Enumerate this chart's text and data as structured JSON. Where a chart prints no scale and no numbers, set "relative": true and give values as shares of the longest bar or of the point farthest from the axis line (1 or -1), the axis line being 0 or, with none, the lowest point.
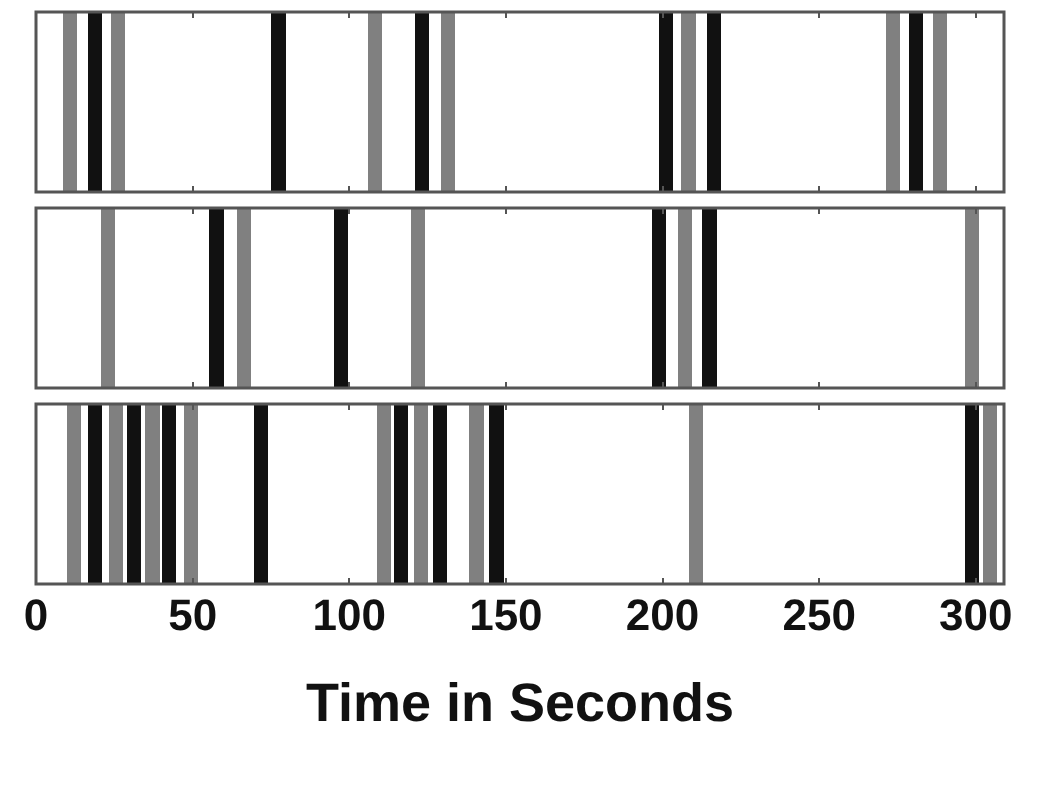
{
  "chart_data": [
    {
      "type": "bar",
      "relative": true,
      "x": [
        10.9,
        18.9,
        26.2,
        77.4,
        108.1,
        123.2,
        131.5,
        201.2,
        208.3,
        216.4,
        273.5,
        281,
        288.5
      ],
      "values": [
        1,
        1,
        1,
        1,
        1,
        1,
        1,
        1,
        1,
        1,
        1,
        1,
        1
      ],
      "colors": [
        "#808080",
        "#111111",
        "#808080",
        "#111111",
        "#808080",
        "#111111",
        "#808080",
        "#111111",
        "#808080",
        "#111111",
        "#808080",
        "#111111",
        "#808080"
      ],
      "xlim": [
        0,
        309
      ],
      "xticks": [
        0,
        50,
        100,
        150,
        200,
        250,
        300
      ],
      "tick_labels": false
    },
    {
      "type": "bar",
      "relative": true,
      "x": [
        22.9,
        57.6,
        66.5,
        97.4,
        122,
        199,
        207.3,
        215,
        298.9
      ],
      "values": [
        1,
        1,
        1,
        1,
        1,
        1,
        1,
        1,
        1
      ],
      "colors": [
        "#808080",
        "#111111",
        "#808080",
        "#111111",
        "#808080",
        "#111111",
        "#808080",
        "#111111",
        "#808080"
      ],
      "xlim": [
        0,
        309
      ],
      "xticks": [
        0,
        50,
        100,
        150,
        200,
        250,
        300
      ],
      "tick_labels": false
    },
    {
      "type": "bar",
      "relative": true,
      "x": [
        12,
        18.9,
        25.5,
        31.3,
        37.2,
        42.4,
        49.4,
        71.8,
        111.2,
        116.5,
        123,
        128.9,
        140.6,
        147,
        210.6,
        298.7,
        304.6
      ],
      "values": [
        1,
        1,
        1,
        1,
        1,
        1,
        1,
        1,
        1,
        1,
        1,
        1,
        1,
        1,
        1,
        1,
        1
      ],
      "colors": [
        "#808080",
        "#111111",
        "#808080",
        "#111111",
        "#808080",
        "#111111",
        "#808080",
        "#111111",
        "#808080",
        "#111111",
        "#808080",
        "#111111",
        "#808080",
        "#111111",
        "#808080",
        "#111111",
        "#808080"
      ],
      "xlim": [
        0,
        309
      ],
      "xticks": [
        0,
        50,
        100,
        150,
        200,
        250,
        300
      ],
      "tick_labels": "x",
      "xlabel": "Time in Seconds"
    }
  ]
}
